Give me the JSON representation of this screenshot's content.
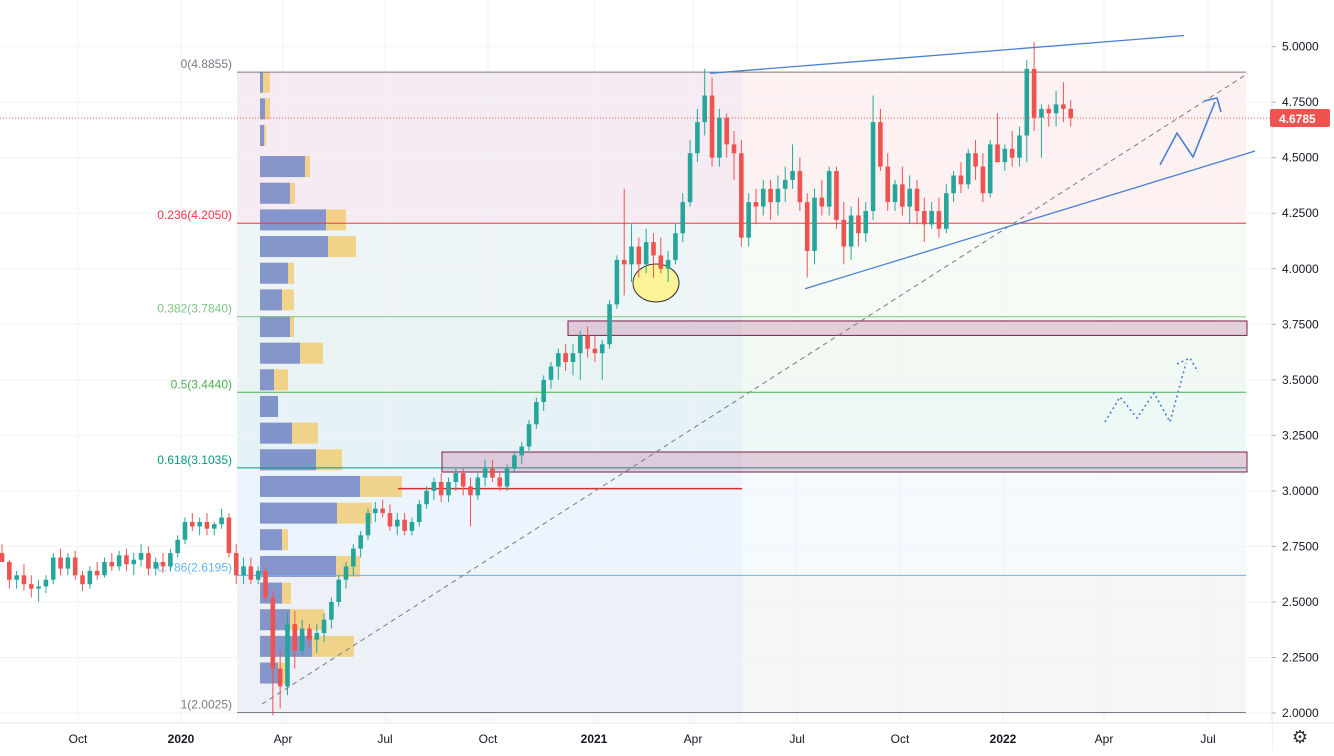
{
  "chart_data": {
    "type": "candlestick",
    "price_scale": {
      "ticks": [
        "5.0000",
        "4.7500",
        "4.5000",
        "4.2500",
        "4.0000",
        "3.7500",
        "3.5000",
        "3.2500",
        "3.0000",
        "2.7500",
        "2.5000",
        "2.2500",
        "2.0000"
      ],
      "ylim": [
        1.955,
        5.21
      ],
      "last_price": "4.6785",
      "last_price_color": "#ef5350"
    },
    "time_scale": {
      "labels": [
        "Oct",
        "2020",
        "Apr",
        "Jul",
        "Oct",
        "2021",
        "Apr",
        "Jul",
        "Oct",
        "2022",
        "Apr",
        "Jul"
      ],
      "bold_labels": [
        "2020",
        "2021",
        "2022"
      ]
    },
    "fib_levels": [
      {
        "label": "0(4.8855)",
        "value": 4.8855,
        "color": "#787b86"
      },
      {
        "label": "0.236(4.2050)",
        "value": 4.205,
        "color": "#f23645"
      },
      {
        "label": "0.382(3.7840)",
        "value": 3.784,
        "color": "#81c784"
      },
      {
        "label": "0.5(3.4440)",
        "value": 3.444,
        "color": "#4caf50"
      },
      {
        "label": "0.618(3.1035)",
        "value": 3.1035,
        "color": "#089981"
      },
      {
        "label": "0.786(2.6195)",
        "value": 2.6195,
        "color": "#64b5f6"
      },
      {
        "label": "1(2.0025)",
        "value": 2.0025,
        "color": "#787b86"
      }
    ],
    "zones": [
      {
        "from": 3.7,
        "to": 3.765,
        "color": "#b7427f"
      },
      {
        "from": 3.085,
        "to": 3.175,
        "color": "#b7427f"
      }
    ],
    "support_line": 3.01,
    "candles": [
      [
        2.72,
        2.76,
        2.68,
        2.68
      ],
      [
        2.68,
        2.69,
        2.56,
        2.6
      ],
      [
        2.6,
        2.64,
        2.56,
        2.62
      ],
      [
        2.62,
        2.67,
        2.55,
        2.58
      ],
      [
        2.58,
        2.62,
        2.52,
        2.56
      ],
      [
        2.56,
        2.6,
        2.5,
        2.57
      ],
      [
        2.57,
        2.62,
        2.54,
        2.6
      ],
      [
        2.6,
        2.72,
        2.58,
        2.7
      ],
      [
        2.7,
        2.74,
        2.62,
        2.65
      ],
      [
        2.65,
        2.72,
        2.62,
        2.7
      ],
      [
        2.7,
        2.73,
        2.6,
        2.62
      ],
      [
        2.62,
        2.64,
        2.55,
        2.58
      ],
      [
        2.58,
        2.66,
        2.56,
        2.64
      ],
      [
        2.64,
        2.68,
        2.6,
        2.62
      ],
      [
        2.62,
        2.7,
        2.61,
        2.68
      ],
      [
        2.68,
        2.72,
        2.64,
        2.66
      ],
      [
        2.66,
        2.73,
        2.64,
        2.71
      ],
      [
        2.71,
        2.74,
        2.64,
        2.67
      ],
      [
        2.67,
        2.72,
        2.62,
        2.69
      ],
      [
        2.69,
        2.76,
        2.66,
        2.72
      ],
      [
        2.72,
        2.75,
        2.62,
        2.65
      ],
      [
        2.65,
        2.7,
        2.62,
        2.68
      ],
      [
        2.68,
        2.72,
        2.63,
        2.66
      ],
      [
        2.66,
        2.74,
        2.64,
        2.72
      ],
      [
        2.72,
        2.8,
        2.7,
        2.78
      ],
      [
        2.78,
        2.88,
        2.76,
        2.86
      ],
      [
        2.86,
        2.9,
        2.82,
        2.84
      ],
      [
        2.84,
        2.88,
        2.8,
        2.86
      ],
      [
        2.86,
        2.9,
        2.8,
        2.83
      ],
      [
        2.83,
        2.86,
        2.8,
        2.85
      ],
      [
        2.85,
        2.92,
        2.83,
        2.88
      ],
      [
        2.88,
        2.9,
        2.7,
        2.72
      ],
      [
        2.72,
        2.76,
        2.58,
        2.62
      ],
      [
        2.62,
        2.7,
        2.58,
        2.66
      ],
      [
        2.66,
        2.7,
        2.58,
        2.6
      ],
      [
        2.6,
        2.66,
        2.58,
        2.64
      ],
      [
        2.64,
        2.66,
        2.5,
        2.52
      ],
      [
        2.52,
        2.55,
        1.99,
        2.2
      ],
      [
        2.2,
        2.28,
        2.02,
        2.12
      ],
      [
        2.12,
        2.45,
        2.08,
        2.4
      ],
      [
        2.4,
        2.46,
        2.2,
        2.28
      ],
      [
        2.28,
        2.42,
        2.26,
        2.38
      ],
      [
        2.38,
        2.4,
        2.3,
        2.33
      ],
      [
        2.33,
        2.4,
        2.27,
        2.36
      ],
      [
        2.36,
        2.45,
        2.32,
        2.42
      ],
      [
        2.42,
        2.52,
        2.38,
        2.5
      ],
      [
        2.5,
        2.62,
        2.48,
        2.6
      ],
      [
        2.6,
        2.68,
        2.56,
        2.66
      ],
      [
        2.66,
        2.76,
        2.62,
        2.74
      ],
      [
        2.74,
        2.82,
        2.7,
        2.8
      ],
      [
        2.8,
        2.92,
        2.78,
        2.9
      ],
      [
        2.9,
        2.95,
        2.86,
        2.92
      ],
      [
        2.92,
        2.96,
        2.88,
        2.9
      ],
      [
        2.9,
        2.94,
        2.82,
        2.84
      ],
      [
        2.84,
        2.9,
        2.8,
        2.87
      ],
      [
        2.87,
        2.9,
        2.8,
        2.82
      ],
      [
        2.82,
        2.88,
        2.8,
        2.86
      ],
      [
        2.86,
        2.96,
        2.84,
        2.94
      ],
      [
        2.94,
        3.02,
        2.92,
        3.0
      ],
      [
        3.0,
        3.06,
        2.96,
        3.04
      ],
      [
        3.04,
        3.08,
        2.95,
        2.98
      ],
      [
        2.98,
        3.06,
        2.95,
        3.04
      ],
      [
        3.04,
        3.1,
        3.0,
        3.08
      ],
      [
        3.08,
        3.1,
        2.98,
        3.02
      ],
      [
        3.02,
        3.06,
        2.84,
        2.98
      ],
      [
        2.98,
        3.08,
        2.96,
        3.06
      ],
      [
        3.06,
        3.14,
        3.02,
        3.1
      ],
      [
        3.1,
        3.14,
        3.04,
        3.06
      ],
      [
        3.06,
        3.08,
        3.0,
        3.02
      ],
      [
        3.02,
        3.12,
        3.0,
        3.1
      ],
      [
        3.1,
        3.18,
        3.08,
        3.16
      ],
      [
        3.16,
        3.22,
        3.12,
        3.2
      ],
      [
        3.2,
        3.32,
        3.18,
        3.3
      ],
      [
        3.3,
        3.42,
        3.28,
        3.4
      ],
      [
        3.4,
        3.52,
        3.36,
        3.5
      ],
      [
        3.5,
        3.58,
        3.46,
        3.56
      ],
      [
        3.56,
        3.64,
        3.5,
        3.62
      ],
      [
        3.62,
        3.66,
        3.54,
        3.58
      ],
      [
        3.58,
        3.66,
        3.52,
        3.62
      ],
      [
        3.62,
        3.72,
        3.5,
        3.7
      ],
      [
        3.7,
        3.74,
        3.6,
        3.64
      ],
      [
        3.64,
        3.7,
        3.58,
        3.62
      ],
      [
        3.62,
        3.68,
        3.5,
        3.66
      ],
      [
        3.66,
        3.86,
        3.64,
        3.84
      ],
      [
        3.84,
        4.06,
        3.82,
        4.04
      ],
      [
        4.04,
        4.36,
        3.88,
        4.02
      ],
      [
        4.02,
        4.2,
        3.94,
        4.1
      ],
      [
        4.1,
        4.14,
        3.96,
        4.02
      ],
      [
        4.02,
        4.18,
        3.98,
        4.12
      ],
      [
        4.12,
        4.16,
        3.96,
        4.06
      ],
      [
        4.06,
        4.14,
        3.98,
        4.0
      ],
      [
        4.0,
        4.08,
        3.94,
        4.04
      ],
      [
        4.04,
        4.2,
        4.02,
        4.16
      ],
      [
        4.16,
        4.34,
        4.12,
        4.3
      ],
      [
        4.3,
        4.58,
        4.28,
        4.52
      ],
      [
        4.52,
        4.72,
        4.48,
        4.66
      ],
      [
        4.66,
        4.9,
        4.6,
        4.78
      ],
      [
        4.78,
        4.86,
        4.46,
        4.5
      ],
      [
        4.5,
        4.72,
        4.46,
        4.68
      ],
      [
        4.68,
        4.7,
        4.5,
        4.56
      ],
      [
        4.56,
        4.62,
        4.4,
        4.52
      ],
      [
        4.52,
        4.58,
        4.1,
        4.14
      ],
      [
        4.14,
        4.34,
        4.1,
        4.3
      ],
      [
        4.3,
        4.36,
        4.2,
        4.28
      ],
      [
        4.28,
        4.4,
        4.24,
        4.36
      ],
      [
        4.36,
        4.4,
        4.22,
        4.3
      ],
      [
        4.3,
        4.42,
        4.24,
        4.36
      ],
      [
        4.36,
        4.46,
        4.3,
        4.4
      ],
      [
        4.4,
        4.56,
        4.36,
        4.44
      ],
      [
        4.44,
        4.5,
        4.26,
        4.3
      ],
      [
        4.3,
        4.34,
        3.96,
        4.08
      ],
      [
        4.08,
        4.36,
        4.02,
        4.32
      ],
      [
        4.32,
        4.4,
        4.24,
        4.28
      ],
      [
        4.28,
        4.46,
        4.24,
        4.44
      ],
      [
        4.44,
        4.46,
        4.18,
        4.22
      ],
      [
        4.22,
        4.3,
        4.02,
        4.1
      ],
      [
        4.1,
        4.28,
        4.04,
        4.24
      ],
      [
        4.24,
        4.32,
        4.1,
        4.16
      ],
      [
        4.16,
        4.3,
        4.12,
        4.26
      ],
      [
        4.26,
        4.78,
        4.22,
        4.66
      ],
      [
        4.66,
        4.72,
        4.44,
        4.46
      ],
      [
        4.46,
        4.52,
        4.26,
        4.3
      ],
      [
        4.3,
        4.4,
        4.26,
        4.38
      ],
      [
        4.38,
        4.46,
        4.24,
        4.28
      ],
      [
        4.28,
        4.42,
        4.2,
        4.36
      ],
      [
        4.36,
        4.4,
        4.2,
        4.26
      ],
      [
        4.26,
        4.32,
        4.12,
        4.2
      ],
      [
        4.2,
        4.3,
        4.18,
        4.26
      ],
      [
        4.26,
        4.32,
        4.14,
        4.18
      ],
      [
        4.18,
        4.38,
        4.16,
        4.34
      ],
      [
        4.34,
        4.44,
        4.3,
        4.42
      ],
      [
        4.42,
        4.48,
        4.34,
        4.38
      ],
      [
        4.38,
        4.54,
        4.36,
        4.52
      ],
      [
        4.52,
        4.58,
        4.4,
        4.46
      ],
      [
        4.46,
        4.52,
        4.3,
        4.34
      ],
      [
        4.34,
        4.58,
        4.32,
        4.56
      ],
      [
        4.56,
        4.7,
        4.48,
        4.48
      ],
      [
        4.48,
        4.56,
        4.44,
        4.54
      ],
      [
        4.54,
        4.62,
        4.46,
        4.5
      ],
      [
        4.5,
        4.64,
        4.46,
        4.6
      ],
      [
        4.6,
        4.94,
        4.48,
        4.9
      ],
      [
        4.9,
        5.02,
        4.62,
        4.68
      ],
      [
        4.68,
        4.74,
        4.5,
        4.72
      ],
      [
        4.72,
        4.74,
        4.64,
        4.7
      ],
      [
        4.7,
        4.8,
        4.64,
        4.74
      ],
      [
        4.74,
        4.84,
        4.66,
        4.72
      ],
      [
        4.72,
        4.76,
        4.64,
        4.6785
      ]
    ]
  }
}
